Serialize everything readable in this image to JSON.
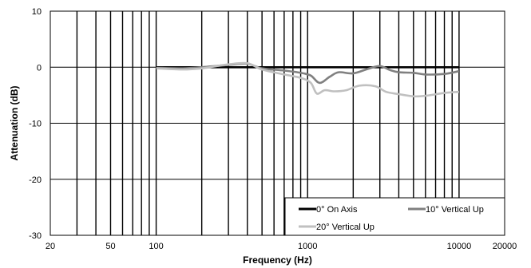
{
  "chart_data": {
    "type": "line",
    "title": "",
    "xlabel": "Frequency (Hz)",
    "ylabel": "Attenuation (dB)",
    "xscale": "log",
    "xlim": [
      20,
      20000
    ],
    "ylim": [
      -30,
      10
    ],
    "x_ticks": [
      20,
      50,
      100,
      1000,
      10000,
      20000
    ],
    "x_tick_labels": [
      "20",
      "50",
      "100",
      "1000",
      "10000",
      "20000"
    ],
    "y_ticks": [
      10,
      0,
      -10,
      -20,
      -30
    ],
    "y_tick_labels": [
      "10",
      "0",
      "-10",
      "-20",
      "-30"
    ],
    "grid": "on",
    "legend_position": "bottom-right",
    "series": [
      {
        "name": "0° On Axis",
        "color": "#000000",
        "x": [
          100,
          200,
          300,
          400,
          600,
          1000,
          2000,
          4000,
          8000,
          10000
        ],
        "y": [
          0,
          0,
          0,
          0,
          0,
          0,
          0,
          0,
          0,
          0
        ]
      },
      {
        "name": "10° Vertical Up",
        "color": "#808080",
        "x": [
          100,
          150,
          200,
          300,
          400,
          500,
          700,
          900,
          1050,
          1200,
          1400,
          1600,
          2000,
          2500,
          3000,
          3500,
          4000,
          5000,
          6000,
          8000,
          10000
        ],
        "y": [
          -0.1,
          -0.2,
          0,
          0.4,
          0.6,
          -0.2,
          -0.6,
          -1.0,
          -1.5,
          -2.8,
          -1.7,
          -0.9,
          -1.1,
          -0.3,
          0.2,
          -0.5,
          -0.9,
          -1.0,
          -1.3,
          -1.2,
          -0.7
        ]
      },
      {
        "name": "20° Vertical Up",
        "color": "#c0c0c0",
        "x": [
          100,
          150,
          200,
          300,
          400,
          500,
          700,
          900,
          1050,
          1150,
          1300,
          1500,
          1800,
          2200,
          2800,
          3300,
          4000,
          5000,
          6000,
          8000,
          10000
        ],
        "y": [
          -0.2,
          -0.4,
          -0.2,
          0.5,
          0.7,
          -0.4,
          -1.3,
          -1.9,
          -2.8,
          -4.7,
          -4.1,
          -4.3,
          -4.1,
          -3.3,
          -3.4,
          -4.4,
          -4.8,
          -5.2,
          -5.1,
          -4.6,
          -4.4
        ]
      }
    ]
  }
}
